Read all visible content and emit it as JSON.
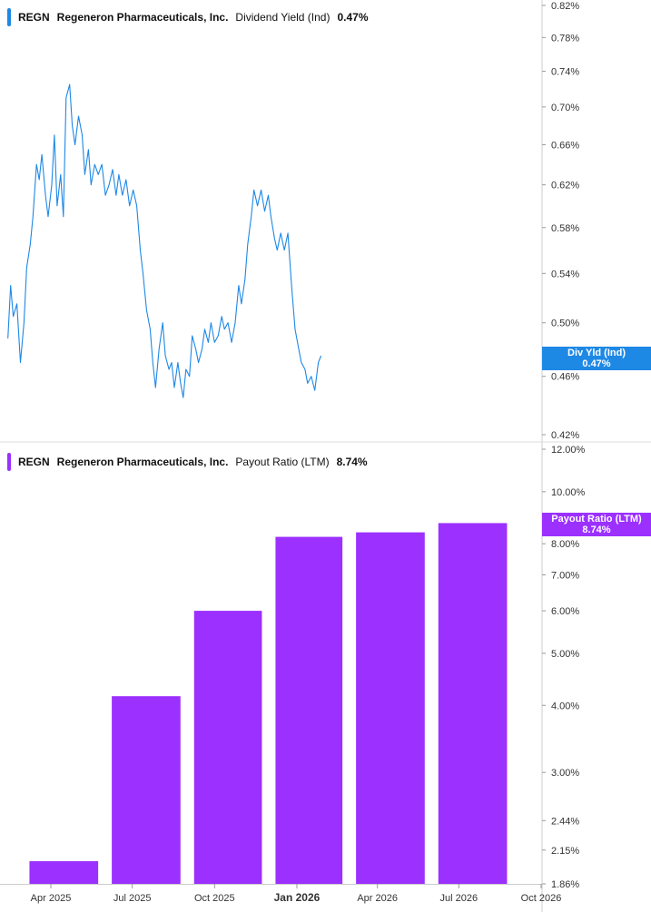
{
  "colors": {
    "yield": "#1e88e5",
    "payout": "#9b30ff",
    "grid": "#e6e6e6",
    "axis": "#cccccc"
  },
  "panel_top": {
    "symbol": "REGN",
    "company": "Regeneron Pharmaceuticals, Inc.",
    "metric": "Dividend Yield (Ind)",
    "value": "0.47%",
    "flag_label": "Div Yld (Ind)",
    "flag_value": "0.47%"
  },
  "panel_bottom": {
    "symbol": "REGN",
    "company": "Regeneron Pharmaceuticals, Inc.",
    "metric": "Payout Ratio (LTM)",
    "value": "8.74%",
    "flag_label": "Payout Ratio (LTM)",
    "flag_value": "8.74%"
  },
  "chart_data": [
    {
      "type": "line",
      "title": "REGN Regeneron Pharmaceuticals, Inc. Dividend Yield (Ind) 0.47%",
      "series": [
        {
          "name": "Dividend Yield (Ind)",
          "unit": "%"
        }
      ],
      "x_range": [
        "2025-02-12",
        "2026-10-01"
      ],
      "y_scale": "log",
      "ylim": [
        0.42,
        0.82
      ],
      "y_ticks": [
        0.82,
        0.78,
        0.74,
        0.7,
        0.66,
        0.62,
        0.58,
        0.54,
        0.5,
        0.46,
        0.42
      ],
      "y_tick_labels": [
        "0.82%",
        "0.78%",
        "0.74%",
        "0.70%",
        "0.66%",
        "0.62%",
        "0.58%",
        "0.54%",
        "0.50%",
        "0.46%",
        "0.42%"
      ],
      "points": [
        [
          "2025-02-12",
          0.488
        ],
        [
          "2025-02-15",
          0.53
        ],
        [
          "2025-02-18",
          0.505
        ],
        [
          "2025-02-22",
          0.515
        ],
        [
          "2025-02-26",
          0.47
        ],
        [
          "2025-03-02",
          0.5
        ],
        [
          "2025-03-05",
          0.545
        ],
        [
          "2025-03-09",
          0.565
        ],
        [
          "2025-03-12",
          0.59
        ],
        [
          "2025-03-16",
          0.64
        ],
        [
          "2025-03-19",
          0.625
        ],
        [
          "2025-03-22",
          0.65
        ],
        [
          "2025-03-26",
          0.61
        ],
        [
          "2025-03-29",
          0.59
        ],
        [
          "2025-04-02",
          0.62
        ],
        [
          "2025-04-05",
          0.67
        ],
        [
          "2025-04-08",
          0.6
        ],
        [
          "2025-04-12",
          0.63
        ],
        [
          "2025-04-15",
          0.59
        ],
        [
          "2025-04-18",
          0.71
        ],
        [
          "2025-04-22",
          0.725
        ],
        [
          "2025-04-25",
          0.68
        ],
        [
          "2025-04-28",
          0.66
        ],
        [
          "2025-05-02",
          0.69
        ],
        [
          "2025-05-06",
          0.67
        ],
        [
          "2025-05-09",
          0.63
        ],
        [
          "2025-05-13",
          0.655
        ],
        [
          "2025-05-16",
          0.62
        ],
        [
          "2025-05-20",
          0.64
        ],
        [
          "2025-05-24",
          0.63
        ],
        [
          "2025-05-28",
          0.64
        ],
        [
          "2025-06-01",
          0.61
        ],
        [
          "2025-06-05",
          0.62
        ],
        [
          "2025-06-09",
          0.635
        ],
        [
          "2025-06-13",
          0.61
        ],
        [
          "2025-06-16",
          0.63
        ],
        [
          "2025-06-20",
          0.61
        ],
        [
          "2025-06-24",
          0.625
        ],
        [
          "2025-06-28",
          0.6
        ],
        [
          "2025-07-02",
          0.615
        ],
        [
          "2025-07-06",
          0.6
        ],
        [
          "2025-07-10",
          0.56
        ],
        [
          "2025-07-13",
          0.54
        ],
        [
          "2025-07-17",
          0.51
        ],
        [
          "2025-07-21",
          0.495
        ],
        [
          "2025-07-24",
          0.47
        ],
        [
          "2025-07-27",
          0.452
        ],
        [
          "2025-07-31",
          0.48
        ],
        [
          "2025-08-04",
          0.5
        ],
        [
          "2025-08-07",
          0.475
        ],
        [
          "2025-08-11",
          0.465
        ],
        [
          "2025-08-14",
          0.47
        ],
        [
          "2025-08-17",
          0.452
        ],
        [
          "2025-08-21",
          0.47
        ],
        [
          "2025-08-24",
          0.455
        ],
        [
          "2025-08-27",
          0.445
        ],
        [
          "2025-08-30",
          0.465
        ],
        [
          "2025-09-03",
          0.46
        ],
        [
          "2025-09-06",
          0.49
        ],
        [
          "2025-09-10",
          0.48
        ],
        [
          "2025-09-13",
          0.47
        ],
        [
          "2025-09-17",
          0.48
        ],
        [
          "2025-09-20",
          0.495
        ],
        [
          "2025-09-24",
          0.485
        ],
        [
          "2025-09-27",
          0.5
        ],
        [
          "2025-10-01",
          0.485
        ],
        [
          "2025-10-05",
          0.49
        ],
        [
          "2025-10-09",
          0.505
        ],
        [
          "2025-10-12",
          0.495
        ],
        [
          "2025-10-16",
          0.5
        ],
        [
          "2025-10-20",
          0.485
        ],
        [
          "2025-10-24",
          0.5
        ],
        [
          "2025-10-28",
          0.53
        ],
        [
          "2025-10-31",
          0.515
        ],
        [
          "2025-11-04",
          0.535
        ],
        [
          "2025-11-07",
          0.565
        ],
        [
          "2025-11-11",
          0.59
        ],
        [
          "2025-11-14",
          0.615
        ],
        [
          "2025-11-18",
          0.6
        ],
        [
          "2025-11-22",
          0.615
        ],
        [
          "2025-11-26",
          0.595
        ],
        [
          "2025-11-30",
          0.61
        ],
        [
          "2025-12-03",
          0.59
        ],
        [
          "2025-12-07",
          0.57
        ],
        [
          "2025-12-10",
          0.56
        ],
        [
          "2025-12-14",
          0.575
        ],
        [
          "2025-12-18",
          0.56
        ],
        [
          "2025-12-22",
          0.575
        ],
        [
          "2025-12-26",
          0.53
        ],
        [
          "2025-12-30",
          0.495
        ],
        [
          "2026-01-03",
          0.48
        ],
        [
          "2026-01-06",
          0.47
        ],
        [
          "2026-01-10",
          0.465
        ],
        [
          "2026-01-13",
          0.455
        ],
        [
          "2026-01-17",
          0.46
        ],
        [
          "2026-01-21",
          0.45
        ],
        [
          "2026-01-25",
          0.47
        ],
        [
          "2026-01-28",
          0.475
        ]
      ]
    },
    {
      "type": "bar",
      "title": "REGN Regeneron Pharmaceuticals, Inc. Payout Ratio (LTM) 8.74%",
      "series": [
        {
          "name": "Payout Ratio (LTM)",
          "unit": "%"
        }
      ],
      "x_ticks": [
        "Apr 2025",
        "Jul 2025",
        "Oct 2025",
        "Jan 2026",
        "Apr 2026",
        "Jul 2026",
        "Oct 2026"
      ],
      "bars": [
        {
          "start": "2025-03-01",
          "end": "2025-05-31",
          "value": 2.05
        },
        {
          "start": "2025-06-01",
          "end": "2025-08-31",
          "value": 4.16
        },
        {
          "start": "2025-09-01",
          "end": "2025-11-30",
          "value": 6.0
        },
        {
          "start": "2025-12-01",
          "end": "2026-02-28",
          "value": 8.24
        },
        {
          "start": "2026-03-01",
          "end": "2026-05-31",
          "value": 8.4
        },
        {
          "start": "2026-06-01",
          "end": "2026-08-31",
          "value": 8.74
        }
      ],
      "y_scale": "log",
      "ylim": [
        1.86,
        12.0
      ],
      "y_ticks": [
        12.0,
        10.0,
        8.0,
        7.0,
        6.0,
        5.0,
        4.0,
        3.0,
        2.44,
        2.15,
        1.86
      ],
      "y_tick_labels": [
        "12.00%",
        "10.00%",
        "8.00%",
        "7.00%",
        "6.00%",
        "5.00%",
        "4.00%",
        "3.00%",
        "2.44%",
        "2.15%",
        "1.86%"
      ]
    }
  ]
}
